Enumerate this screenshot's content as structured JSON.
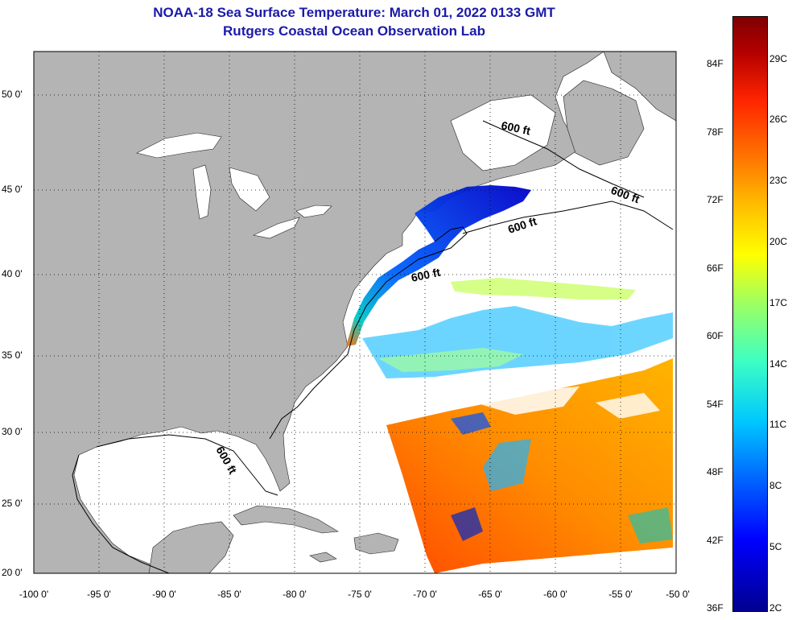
{
  "title": {
    "line1": "NOAA-18 Sea Surface Temperature:  March 01, 2022 0133 GMT",
    "line2": "Rutgers Coastal Ocean Observation Lab"
  },
  "axes": {
    "latitude_labels": [
      "50 0'",
      "45 0'",
      "40 0'",
      "35 0'",
      "30 0'",
      "25 0'",
      "20 0'"
    ],
    "longitude_labels": [
      "-100 0'",
      "-95 0'",
      "-90 0'",
      "-85 0'",
      "-80 0'",
      "-75 0'",
      "-70 0'",
      "-65 0'",
      "-60 0'",
      "-55 0'",
      "-50 0'"
    ]
  },
  "contour_labels": [
    "600 ft",
    "600 ft",
    "600 ft",
    "600 ft",
    "600 ft"
  ],
  "colorbar": {
    "fahrenheit": [
      "84F",
      "78F",
      "72F",
      "66F",
      "60F",
      "54F",
      "48F",
      "42F",
      "36F"
    ],
    "celsius": [
      "29C",
      "26C",
      "23C",
      "20C",
      "17C",
      "14C",
      "11C",
      "8C",
      "5C",
      "2C"
    ]
  },
  "colors": {
    "land": "#b4b4b4",
    "ocean_no_data": "#ffffff",
    "title": "#1a1aa8",
    "gridline": "#000000"
  }
}
